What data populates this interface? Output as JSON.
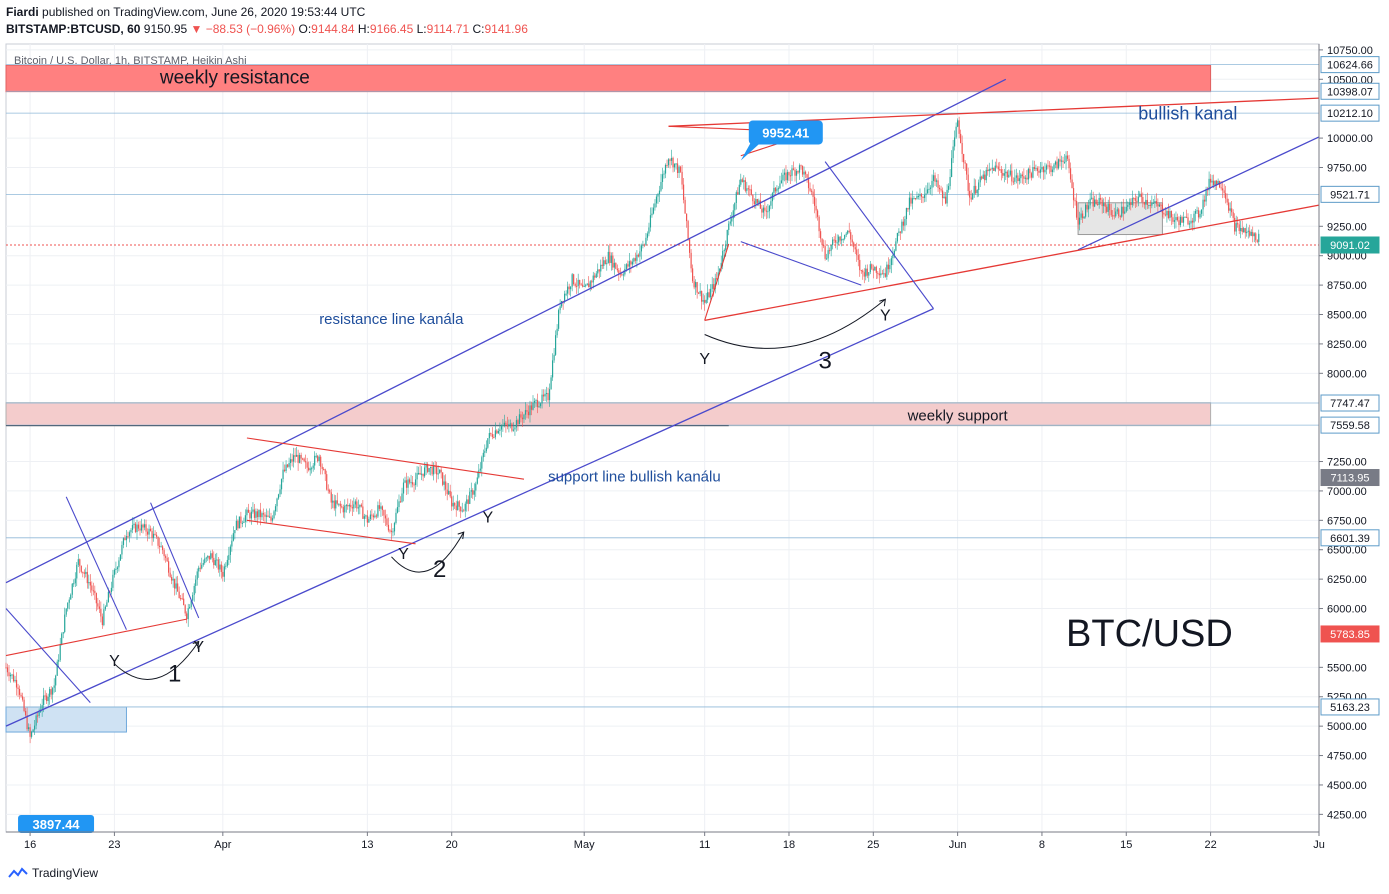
{
  "header": {
    "author": "Fiardi",
    "published": "published on TradingView.com, June 26, 2020 19:53:44 UTC",
    "symbol": "BITSTAMP:BTCUSD, 60",
    "last": "9150.95",
    "change": "▼ −88.53 (−0.96%)",
    "o_label": "O:",
    "o": "9144.84",
    "h_label": "H:",
    "h": "9166.45",
    "l_label": "L:",
    "l": "9114.71",
    "c_label": "C:",
    "c": "9141.96"
  },
  "footer": {
    "brand": "TradingView"
  },
  "chart_data": {
    "type": "candlestick",
    "title": "Bitcoin / U.S. Dollar, 1h, BITSTAMP, Heikin Ashi",
    "symbol_label": "BTC/USD",
    "ylim": [
      4100,
      10800
    ],
    "xlim": [
      "2020-03-14",
      "2020-07-01"
    ],
    "y_ticks": [
      "10750.00",
      "10500.00",
      "10000.00",
      "9750.00",
      "9250.00",
      "9000.00",
      "8750.00",
      "8500.00",
      "8250.00",
      "8000.00",
      "7250.00",
      "7000.00",
      "6750.00",
      "6500.00",
      "6250.00",
      "6000.00",
      "5500.00",
      "5250.00",
      "5000.00",
      "4750.00",
      "4500.00",
      "4250.00"
    ],
    "y_tick_values": [
      10750,
      10500,
      10000,
      9750,
      9250,
      9000,
      8750,
      8500,
      8250,
      8000,
      7250,
      7000,
      6750,
      6500,
      6250,
      6000,
      5500,
      5250,
      5000,
      4750,
      4500,
      4250
    ],
    "price_labels": [
      {
        "value": 10624.66,
        "text": "10624.66",
        "color": "#ffffff"
      },
      {
        "value": 10398.07,
        "text": "10398.07",
        "color": "#ffffff"
      },
      {
        "value": 10212.1,
        "text": "10212.10",
        "color": "#ffffff"
      },
      {
        "value": 9521.71,
        "text": "9521.71",
        "color": "#ffffff"
      },
      {
        "value": 9091.02,
        "text": "9091.02",
        "color": "#26a69a"
      },
      {
        "value": 7747.47,
        "text": "7747.47",
        "color": "#ffffff"
      },
      {
        "value": 7559.58,
        "text": "7559.58",
        "color": "#ffffff"
      },
      {
        "value": 7113.95,
        "text": "7113.95",
        "color": "#787b86"
      },
      {
        "value": 6601.39,
        "text": "6601.39",
        "color": "#ffffff"
      },
      {
        "value": 5783.85,
        "text": "5783.85",
        "color": "#ef5350"
      },
      {
        "value": 5163.23,
        "text": "5163.23",
        "color": "#ffffff"
      }
    ],
    "x_ticks": [
      {
        "date": "2020-03-16",
        "label": "16"
      },
      {
        "date": "2020-03-23",
        "label": "23"
      },
      {
        "date": "2020-04-01",
        "label": "Apr"
      },
      {
        "date": "2020-04-13",
        "label": "13"
      },
      {
        "date": "2020-04-20",
        "label": "20"
      },
      {
        "date": "2020-05-01",
        "label": "May"
      },
      {
        "date": "2020-05-11",
        "label": "11"
      },
      {
        "date": "2020-05-18",
        "label": "18"
      },
      {
        "date": "2020-05-25",
        "label": "25"
      },
      {
        "date": "2020-06-01",
        "label": "Jun"
      },
      {
        "date": "2020-06-08",
        "label": "8"
      },
      {
        "date": "2020-06-15",
        "label": "15"
      },
      {
        "date": "2020-06-22",
        "label": "22"
      },
      {
        "date": "2020-07-01",
        "label": "Ju"
      }
    ],
    "price_path": [
      [
        "2020-03-14",
        5500
      ],
      [
        "2020-03-15",
        5350
      ],
      [
        "2020-03-16",
        4900
      ],
      [
        "2020-03-17",
        5200
      ],
      [
        "2020-03-18",
        5350
      ],
      [
        "2020-03-19",
        6000
      ],
      [
        "2020-03-20",
        6400
      ],
      [
        "2020-03-21",
        6200
      ],
      [
        "2020-03-22",
        5900
      ],
      [
        "2020-03-23",
        6300
      ],
      [
        "2020-03-24",
        6650
      ],
      [
        "2020-03-25",
        6700
      ],
      [
        "2020-03-26",
        6650
      ],
      [
        "2020-03-27",
        6500
      ],
      [
        "2020-03-28",
        6200
      ],
      [
        "2020-03-29",
        5950
      ],
      [
        "2020-03-30",
        6350
      ],
      [
        "2020-03-31",
        6450
      ],
      [
        "2020-04-01",
        6300
      ],
      [
        "2020-04-02",
        6700
      ],
      [
        "2020-04-03",
        6800
      ],
      [
        "2020-04-04",
        6800
      ],
      [
        "2020-04-05",
        6750
      ],
      [
        "2020-04-06",
        7150
      ],
      [
        "2020-04-07",
        7300
      ],
      [
        "2020-04-08",
        7200
      ],
      [
        "2020-04-09",
        7300
      ],
      [
        "2020-04-10",
        6900
      ],
      [
        "2020-04-11",
        6850
      ],
      [
        "2020-04-12",
        6900
      ],
      [
        "2020-04-13",
        6750
      ],
      [
        "2020-04-14",
        6850
      ],
      [
        "2020-04-15",
        6650
      ],
      [
        "2020-04-16",
        7050
      ],
      [
        "2020-04-17",
        7100
      ],
      [
        "2020-04-18",
        7200
      ],
      [
        "2020-04-19",
        7150
      ],
      [
        "2020-04-20",
        6900
      ],
      [
        "2020-04-21",
        6850
      ],
      [
        "2020-04-22",
        7050
      ],
      [
        "2020-04-23",
        7450
      ],
      [
        "2020-04-24",
        7550
      ],
      [
        "2020-04-25",
        7550
      ],
      [
        "2020-04-26",
        7650
      ],
      [
        "2020-04-27",
        7750
      ],
      [
        "2020-04-28",
        7800
      ],
      [
        "2020-04-29",
        8600
      ],
      [
        "2020-04-30",
        8800
      ],
      [
        "2020-05-01",
        8700
      ],
      [
        "2020-05-02",
        8850
      ],
      [
        "2020-05-03",
        9000
      ],
      [
        "2020-05-04",
        8850
      ],
      [
        "2020-05-05",
        8950
      ],
      [
        "2020-05-06",
        9100
      ],
      [
        "2020-05-07",
        9500
      ],
      [
        "2020-05-08",
        9850
      ],
      [
        "2020-05-09",
        9700
      ],
      [
        "2020-05-10",
        8800
      ],
      [
        "2020-05-11",
        8600
      ],
      [
        "2020-05-12",
        8800
      ],
      [
        "2020-05-13",
        9250
      ],
      [
        "2020-05-14",
        9650
      ],
      [
        "2020-05-15",
        9500
      ],
      [
        "2020-05-16",
        9350
      ],
      [
        "2020-05-17",
        9600
      ],
      [
        "2020-05-18",
        9700
      ],
      [
        "2020-05-19",
        9750
      ],
      [
        "2020-05-20",
        9500
      ],
      [
        "2020-05-21",
        9000
      ],
      [
        "2020-05-22",
        9150
      ],
      [
        "2020-05-23",
        9200
      ],
      [
        "2020-05-24",
        8850
      ],
      [
        "2020-05-25",
        8900
      ],
      [
        "2020-05-26",
        8850
      ],
      [
        "2020-05-27",
        9150
      ],
      [
        "2020-05-28",
        9450
      ],
      [
        "2020-05-29",
        9500
      ],
      [
        "2020-05-30",
        9650
      ],
      [
        "2020-05-31",
        9450
      ],
      [
        "2020-06-01",
        10150
      ],
      [
        "2020-06-02",
        9500
      ],
      [
        "2020-06-03",
        9650
      ],
      [
        "2020-06-04",
        9750
      ],
      [
        "2020-06-05",
        9700
      ],
      [
        "2020-06-06",
        9650
      ],
      [
        "2020-06-07",
        9700
      ],
      [
        "2020-06-08",
        9750
      ],
      [
        "2020-06-09",
        9750
      ],
      [
        "2020-06-10",
        9850
      ],
      [
        "2020-06-11",
        9300
      ],
      [
        "2020-06-12",
        9450
      ],
      [
        "2020-06-13",
        9450
      ],
      [
        "2020-06-14",
        9350
      ],
      [
        "2020-06-15",
        9400
      ],
      [
        "2020-06-16",
        9500
      ],
      [
        "2020-06-17",
        9450
      ],
      [
        "2020-06-18",
        9400
      ],
      [
        "2020-06-19",
        9300
      ],
      [
        "2020-06-20",
        9300
      ],
      [
        "2020-06-21",
        9350
      ],
      [
        "2020-06-22",
        9650
      ],
      [
        "2020-06-23",
        9600
      ],
      [
        "2020-06-24",
        9250
      ],
      [
        "2020-06-25",
        9200
      ],
      [
        "2020-06-26",
        9150
      ]
    ],
    "zones": [
      {
        "name": "weekly resistance",
        "from": [
          "2020-03-14",
          10395
        ],
        "to": [
          "2020-06-22",
          10620
        ],
        "color": "#ff8080"
      },
      {
        "name": "weekly support",
        "from": [
          "2020-03-14",
          7555
        ],
        "to": [
          "2020-06-22",
          7750
        ],
        "color": "#f4cccc"
      }
    ],
    "trend_lines": [
      {
        "name": "resistance line kanála",
        "color": "#4a4acc",
        "from": [
          "2020-03-14",
          6220
        ],
        "to": [
          "2020-06-05",
          10500
        ]
      },
      {
        "name": "support line bullish kanálu",
        "color": "#4a4acc",
        "from": [
          "2020-03-14",
          5000
        ],
        "to": [
          "2020-05-30",
          8550
        ]
      },
      {
        "name": "bullish kanal upper",
        "color": "#4a4acc",
        "from": [
          "2020-06-11",
          9050
        ],
        "to": [
          "2020-07-01",
          10010
        ]
      },
      {
        "name": "bullish kanal top",
        "color": "#e53935",
        "from": [
          "2020-05-08",
          10100
        ],
        "to": [
          "2020-07-01",
          10340
        ]
      },
      {
        "name": "bullish kanal lower",
        "color": "#e53935",
        "from": [
          "2020-05-11",
          8450
        ],
        "to": [
          "2020-07-01",
          9430
        ]
      }
    ],
    "annotations": {
      "weekly_resistance": "weekly resistance",
      "weekly_support": "weekly support",
      "resistance_line": "resistance line kanála",
      "support_line": "support line bullish kanálu",
      "bullish_kanal": "bullish kanal",
      "callout": "9952.41",
      "bottom_label": "3897.44",
      "y_marks": [
        "Y",
        "Y",
        "Y",
        "Y",
        "Y",
        "Y"
      ],
      "wave_1": "1",
      "wave_2": "2",
      "wave_3": "3"
    }
  }
}
